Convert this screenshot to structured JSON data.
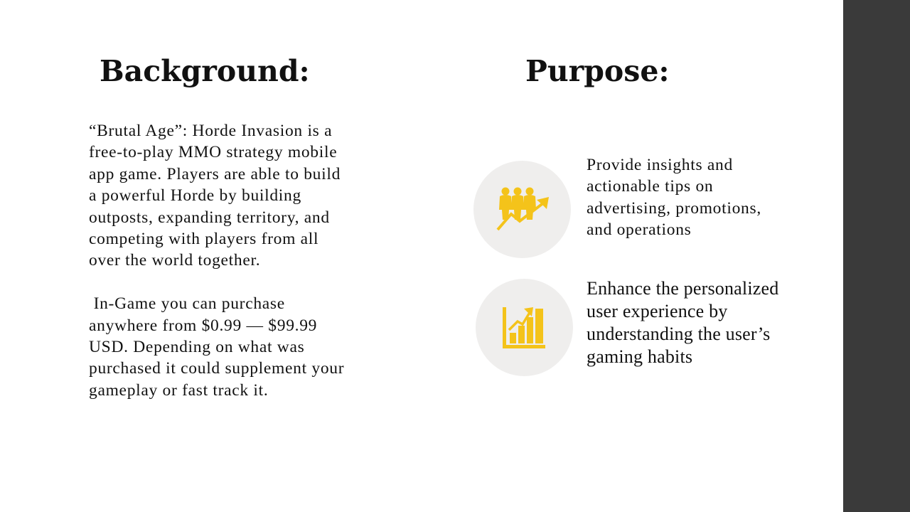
{
  "background": {
    "heading": "Background:",
    "paragraph_1": "“Brutal Age”: Horde Invasion is a\nfree-to-play MMO strategy mobile\napp game. Players are able to build\na powerful Horde by building\noutposts, expanding territory, and\ncompeting with players from all\nover the world together.",
    "paragraph_2": " In-Game you can purchase\nanywhere from $0.99 — $99.99\nUSD. Depending on what was\npurchased it could supplement your\ngameplay or fast track it."
  },
  "purpose": {
    "heading": "Purpose:",
    "items": [
      {
        "icon": "team-growth-icon",
        "text": "Provide insights and\nactionable tips on\nadvertising, promotions,\nand operations"
      },
      {
        "icon": "bar-chart-growth-icon",
        "text": "Enhance the personalized\nuser experience by\nunderstanding the user’s\ngaming habits"
      }
    ]
  },
  "colors": {
    "accent": "#f4c31a",
    "icon_circle": "#efeeed",
    "side_bar": "#3a3a3a",
    "text": "#111111"
  }
}
